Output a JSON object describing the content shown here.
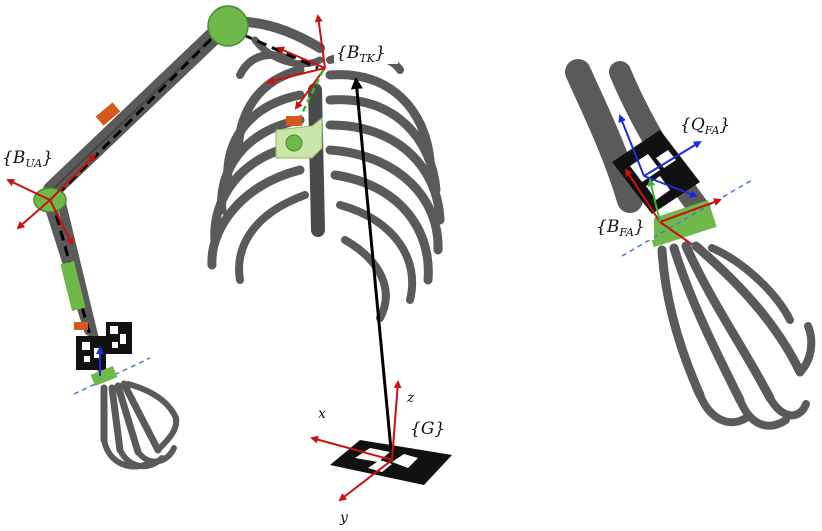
{
  "frames": {
    "BTK": {
      "label": "{B",
      "sub": "TK",
      "close": "}"
    },
    "BUA": {
      "label": "{B",
      "sub": "UA",
      "close": "}"
    },
    "BFA": {
      "label": "{B",
      "sub": "FA",
      "close": "}"
    },
    "QFA": {
      "label": "{Q",
      "sub": "FA",
      "close": "}"
    },
    "G": {
      "label": "{G}"
    }
  },
  "axes": {
    "x": "x",
    "y": "y",
    "z": "z"
  },
  "colors": {
    "bone": "#5a5a5a",
    "bone_dark": "#3a3a3a",
    "joint": "#6fb84a",
    "cluster": "#c9e6a8",
    "marker_orange": "#d35a1a",
    "axis_red": "#cc1010",
    "axis_green": "#3ab830",
    "axis_blue": "#1a2ed8",
    "dash_blue": "#4a7ac8"
  }
}
